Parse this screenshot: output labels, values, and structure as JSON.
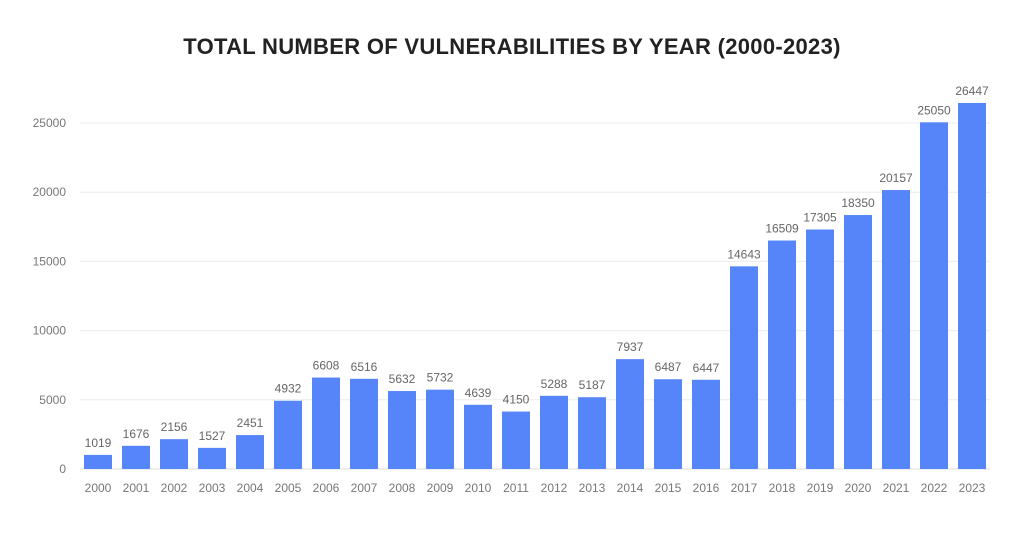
{
  "chart_data": {
    "type": "bar",
    "title": "TOTAL NUMBER OF VULNERABILITIES BY YEAR (2000-2023)",
    "xlabel": "",
    "ylabel": "",
    "categories": [
      "2000",
      "2001",
      "2002",
      "2003",
      "2004",
      "2005",
      "2006",
      "2007",
      "2008",
      "2009",
      "2010",
      "2011",
      "2012",
      "2013",
      "2014",
      "2015",
      "2016",
      "2017",
      "2018",
      "2019",
      "2020",
      "2021",
      "2022",
      "2023"
    ],
    "values": [
      1019,
      1676,
      2156,
      1527,
      2451,
      4932,
      6608,
      6516,
      5632,
      5732,
      4639,
      4150,
      5288,
      5187,
      7937,
      6487,
      6447,
      14643,
      16509,
      17305,
      18350,
      20157,
      25050,
      26447
    ],
    "yticks": [
      0,
      5000,
      10000,
      15000,
      20000,
      25000
    ],
    "ylim": [
      0,
      25000
    ],
    "grid": true,
    "data_labels": true,
    "bar_color": "#5585f8"
  }
}
